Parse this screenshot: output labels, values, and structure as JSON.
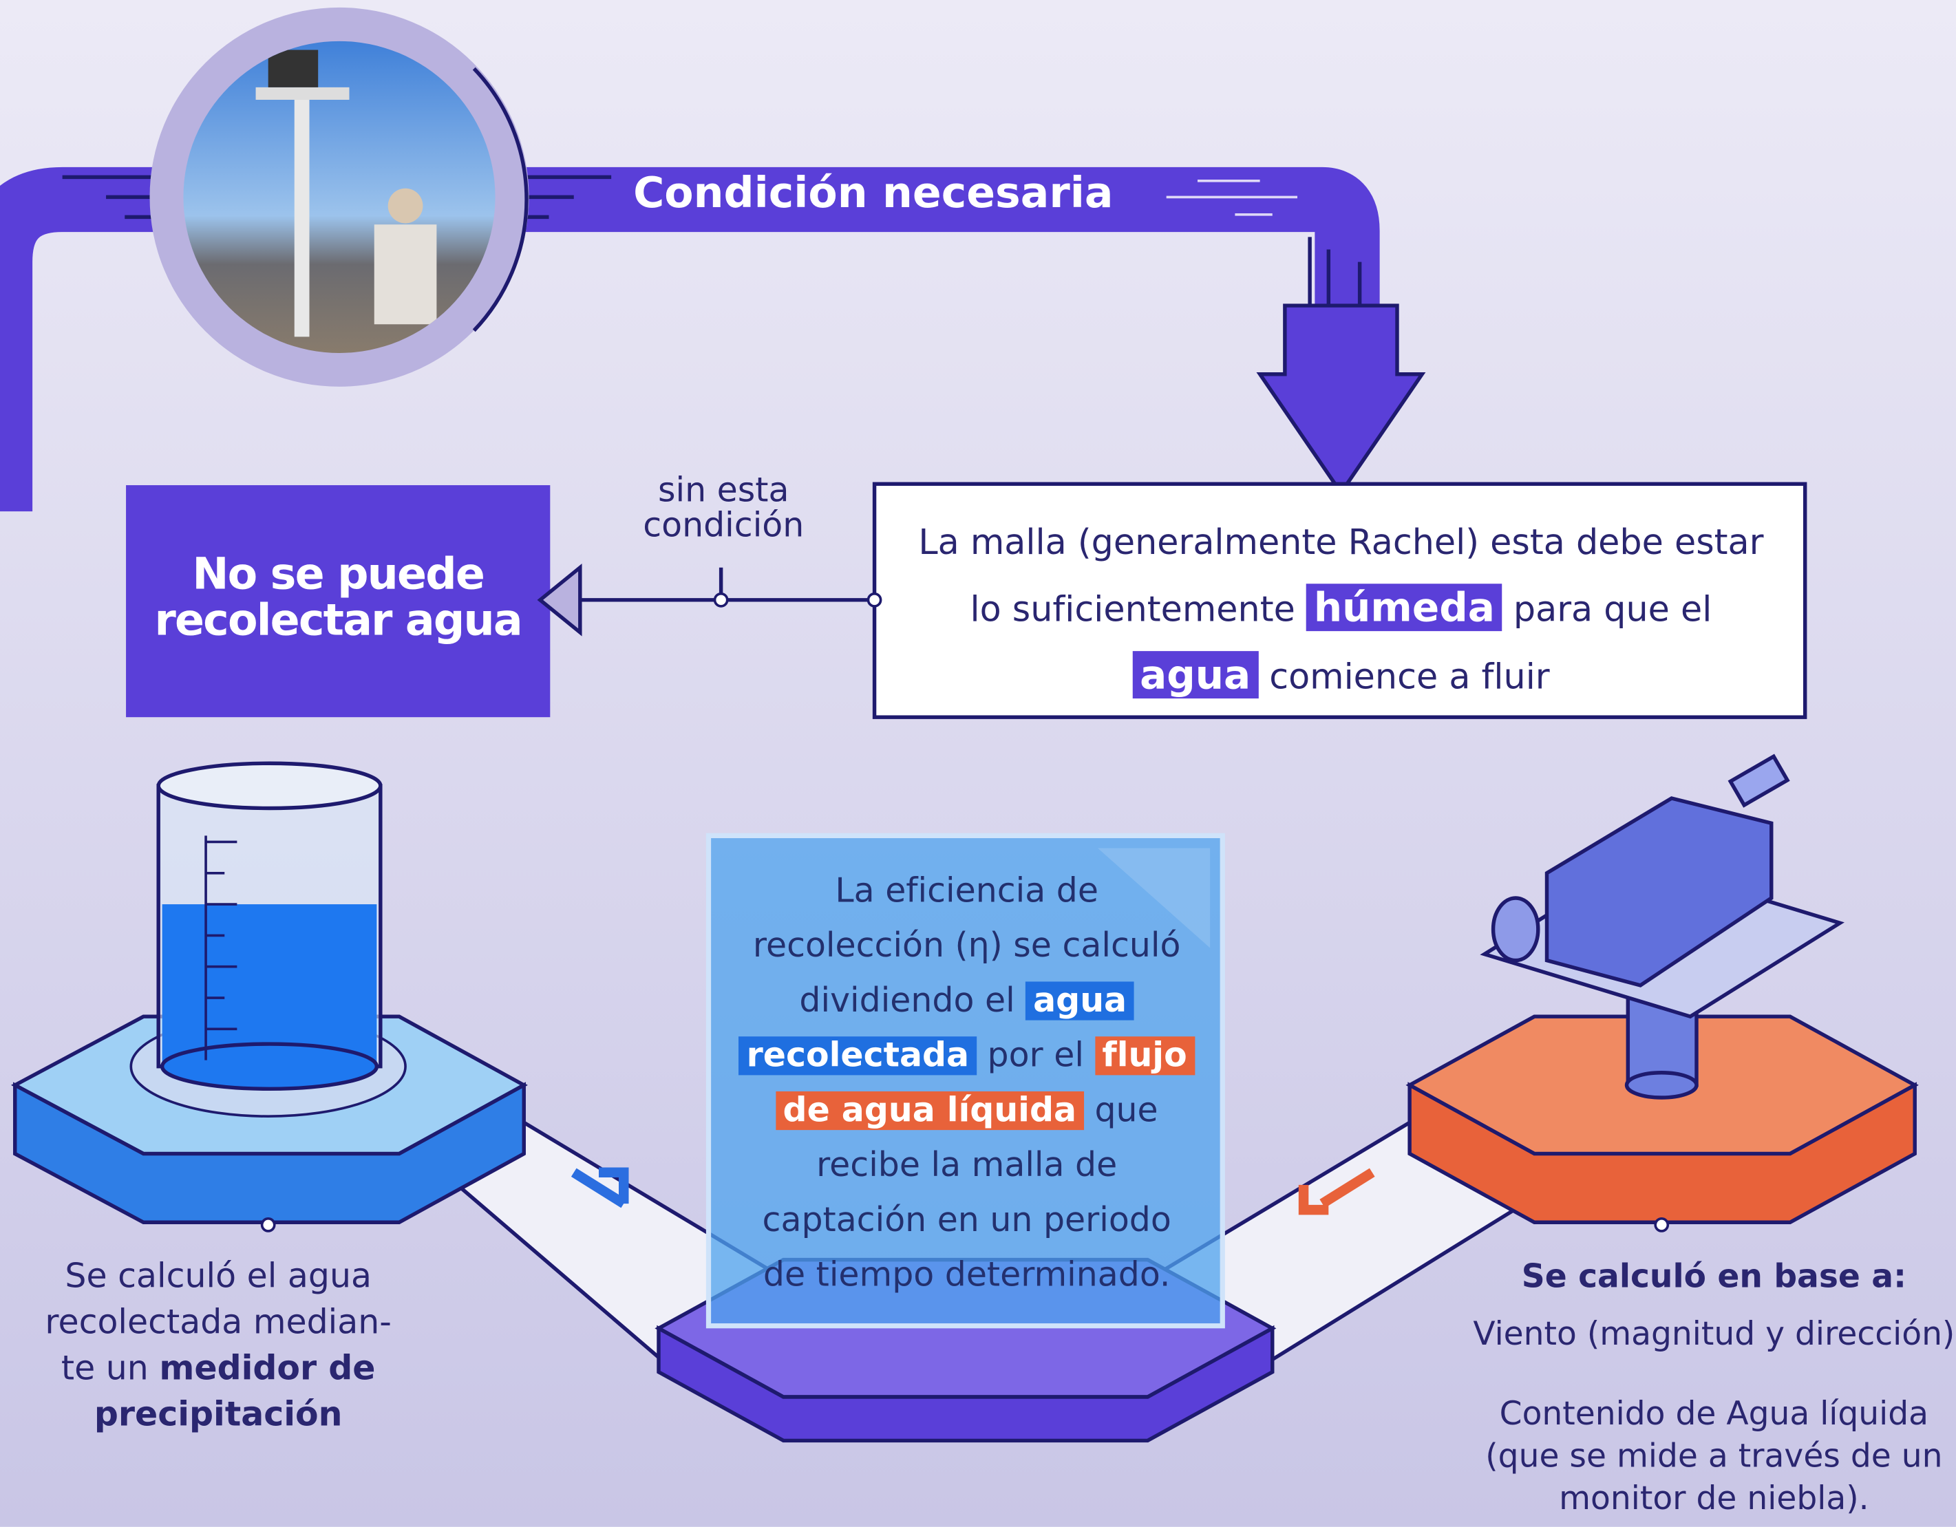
{
  "header": {
    "title": "Condición necesaria"
  },
  "condition": {
    "connector_label": "sin esta condición",
    "result": "No se puede recolectar agua",
    "description": {
      "text_1": "La malla (generalmente Rachel) esta debe estar lo suficientemente",
      "highlight_1": "húmeda",
      "text_2": "para que el",
      "highlight_2": "agua",
      "text_3": "comience a fluir"
    }
  },
  "efficiency": {
    "text_1": "La eficiencia de recolección (η) se calculó dividiendo el",
    "highlight_1": "agua recolectada",
    "text_2": "por el",
    "highlight_2": "flujo de agua líquida",
    "text_3": "que recibe la malla de captación en un periodo de tiempo determinado."
  },
  "collected_water": {
    "text": "Se calculó el agua recolectada median- te un",
    "bold": "medidor de precipitación"
  },
  "liquid_flow": {
    "heading": "Se calculó en base a:",
    "item_1": "Viento (magnitud y dirección)",
    "item_2": "Contenido de Agua líquida (que se mide a través de un monitor de niebla)."
  }
}
